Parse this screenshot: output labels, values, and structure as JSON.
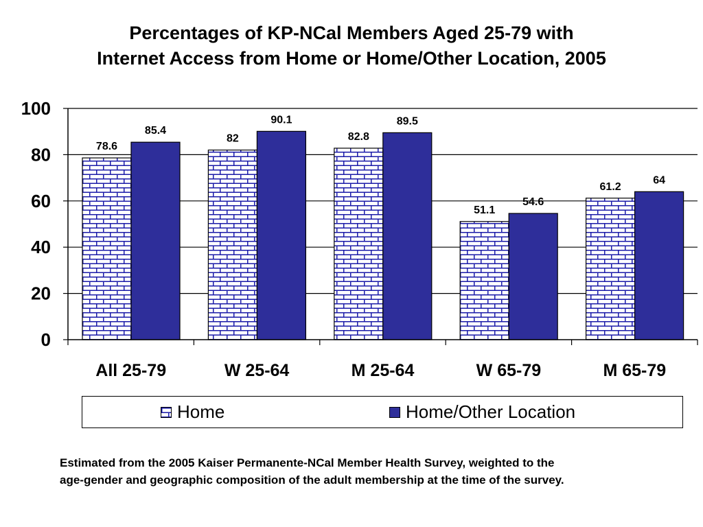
{
  "chart_data": {
    "type": "bar",
    "title_lines": [
      "Percentages of KP-NCal Members Aged 25-79 with",
      "Internet Access from Home or Home/Other Location, 2005"
    ],
    "categories": [
      "All 25-79",
      "W 25-64",
      "M 25-64",
      "W 65-79",
      "M 65-79"
    ],
    "series": [
      {
        "name": "Home",
        "values": [
          78.6,
          82,
          82.8,
          51.1,
          61.2
        ],
        "labels": [
          "78.6",
          "82",
          "82.8",
          "51.1",
          "61.2"
        ],
        "color": "#ffffff",
        "pattern": "brick",
        "pattern_color": "#1a1aa8"
      },
      {
        "name": "Home/Other Location",
        "values": [
          85.4,
          90.1,
          89.5,
          54.6,
          64
        ],
        "labels": [
          "85.4",
          "90.1",
          "89.5",
          "54.6",
          "64"
        ],
        "color": "#2e2e9a"
      }
    ],
    "ylim": [
      0,
      100
    ],
    "yticks": [
      "0",
      "20",
      "40",
      "60",
      "80",
      "100"
    ],
    "grid": true,
    "legend_position": "bottom",
    "xlabel": "",
    "ylabel": ""
  },
  "footnote": [
    "Estimated from the 2005 Kaiser Permanente-NCal Member Health Survey, weighted to the",
    "age-gender and geographic composition of the adult membership at the time of the survey."
  ]
}
